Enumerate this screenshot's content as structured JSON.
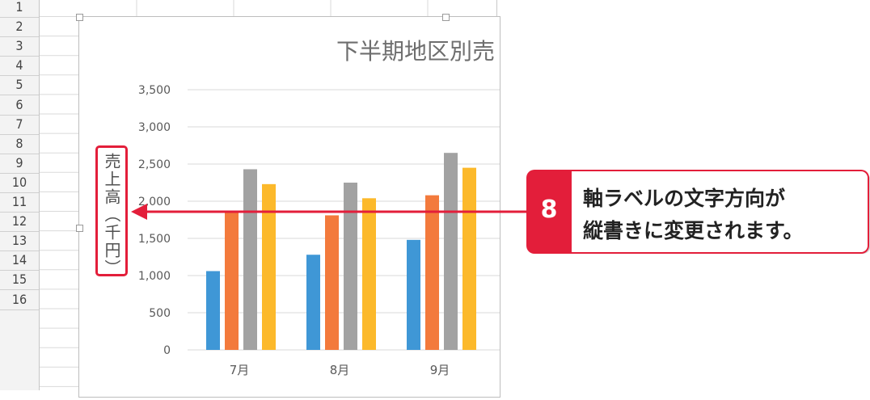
{
  "rows": [
    "1",
    "2",
    "3",
    "4",
    "5",
    "6",
    "7",
    "8",
    "9",
    "10",
    "11",
    "12",
    "13",
    "14",
    "15",
    "16"
  ],
  "chart": {
    "title_visible": "下半期地区別売",
    "y_axis_label": "売上高（千円）"
  },
  "chart_data": {
    "type": "bar",
    "title": "下半期地区別売",
    "categories": [
      "7月",
      "8月",
      "9月"
    ],
    "series": [
      {
        "color": "#3f97d6",
        "values": [
          1060,
          1280,
          1480
        ]
      },
      {
        "color": "#f37a3c",
        "values": [
          1860,
          1810,
          2080
        ]
      },
      {
        "color": "#a2a2a2",
        "values": [
          2430,
          2250,
          2650
        ]
      },
      {
        "color": "#fcb92b",
        "values": [
          2230,
          2040,
          2450
        ]
      }
    ],
    "ylabel": "売上高（千円）",
    "yticks": [
      "0",
      "500",
      "1,000",
      "1,500",
      "2,000",
      "2,500",
      "3,000",
      "3,500"
    ],
    "ylim": [
      0,
      3500
    ],
    "grid": true
  },
  "callout": {
    "number": "8",
    "line1": "軸ラベルの文字方向が",
    "line2": "縦書きに変更されます。",
    "color": "#e31e3a"
  }
}
